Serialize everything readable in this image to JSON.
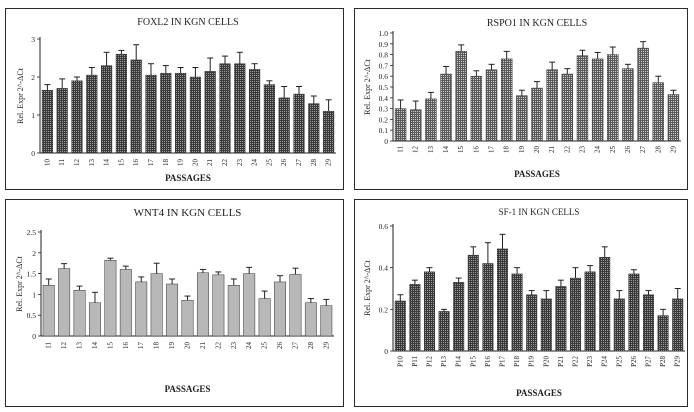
{
  "chart_data": [
    {
      "type": "bar",
      "title": "FOXL2 IN KGN CELLS",
      "xlabel": "PASSAGES",
      "ylabel": "Rel. Expr 2^-ΔCt",
      "ylim": [
        0,
        3
      ],
      "yticks": [
        "0",
        "1",
        "2",
        "3"
      ],
      "grid": false,
      "bar_fill": "crosshatch-dark",
      "categories": [
        "10",
        "11",
        "12",
        "13",
        "14",
        "15",
        "16",
        "17",
        "18",
        "19",
        "20",
        "21",
        "22",
        "23",
        "24",
        "25",
        "26",
        "27",
        "28",
        "29"
      ],
      "values": [
        1.65,
        1.7,
        1.9,
        2.05,
        2.3,
        2.6,
        2.45,
        2.05,
        2.1,
        2.1,
        2.0,
        2.15,
        2.35,
        2.35,
        2.2,
        1.8,
        1.45,
        1.55,
        1.3,
        1.1
      ],
      "errors": [
        0.15,
        0.25,
        0.1,
        0.2,
        0.35,
        0.1,
        0.4,
        0.3,
        0.2,
        0.15,
        0.25,
        0.35,
        0.2,
        0.3,
        0.15,
        0.1,
        0.3,
        0.2,
        0.2,
        0.3
      ]
    },
    {
      "type": "bar",
      "title": "RSPO1 IN KGN CELLS",
      "xlabel": "PASSAGES",
      "ylabel": "Rel. Expr 2^-ΔCt",
      "ylim": [
        0,
        1.0
      ],
      "yticks": [
        "0",
        "0.1",
        "0.2",
        "0.3",
        "0.4",
        "0.5",
        "0.6",
        "0.7",
        "0.8",
        "0.9",
        "1.0"
      ],
      "grid": false,
      "bar_fill": "crosshatch-light",
      "categories": [
        "11",
        "12",
        "13",
        "14",
        "15",
        "16",
        "17",
        "18",
        "19",
        "20",
        "21",
        "22",
        "23",
        "24",
        "25",
        "26",
        "27",
        "28",
        "29"
      ],
      "values": [
        0.3,
        0.29,
        0.39,
        0.62,
        0.83,
        0.6,
        0.66,
        0.76,
        0.42,
        0.49,
        0.66,
        0.62,
        0.79,
        0.76,
        0.8,
        0.67,
        0.86,
        0.54,
        0.43
      ],
      "errors": [
        0.08,
        0.08,
        0.06,
        0.07,
        0.06,
        0.05,
        0.05,
        0.07,
        0.05,
        0.06,
        0.07,
        0.05,
        0.05,
        0.06,
        0.07,
        0.04,
        0.06,
        0.06,
        0.04
      ]
    },
    {
      "type": "bar",
      "title": "WNT4 IN KGN CELLS",
      "xlabel": "PASSAGES",
      "ylabel": "Rel. Expr 2^-ΔCt",
      "ylim": [
        0,
        2.5
      ],
      "yticks": [
        "0",
        "0.5",
        "1",
        "1.5",
        "2",
        "2.5"
      ],
      "grid": false,
      "bar_fill": "solid-grey",
      "categories": [
        "11",
        "12",
        "13",
        "14",
        "15",
        "16",
        "17",
        "18",
        "19",
        "20",
        "21",
        "22",
        "23",
        "24",
        "25",
        "26",
        "27",
        "28",
        "29"
      ],
      "values": [
        1.22,
        1.62,
        1.1,
        0.8,
        1.82,
        1.6,
        1.3,
        1.5,
        1.25,
        0.86,
        1.52,
        1.47,
        1.22,
        1.5,
        0.9,
        1.3,
        1.48,
        0.8,
        0.73
      ],
      "errors": [
        0.15,
        0.12,
        0.1,
        0.25,
        0.05,
        0.08,
        0.12,
        0.25,
        0.12,
        0.1,
        0.08,
        0.07,
        0.15,
        0.15,
        0.18,
        0.15,
        0.15,
        0.1,
        0.15
      ]
    },
    {
      "type": "bar",
      "title": "SF-1 IN KGN CELLS",
      "xlabel": "PASSAGES",
      "ylabel": "Rel. Expr 2^-ΔCt",
      "ylim": [
        0,
        0.6
      ],
      "yticks": [
        "0",
        "0.2",
        "0.4",
        "0.6"
      ],
      "grid": false,
      "bar_fill": "crosshatch-dark",
      "categories": [
        "P10",
        "P11",
        "P12",
        "P13",
        "P14",
        "P15",
        "P16",
        "P17",
        "P18",
        "P19",
        "P20",
        "P21",
        "P22",
        "P23",
        "P24",
        "P25",
        "P26",
        "P27",
        "P28",
        "P29"
      ],
      "values": [
        0.24,
        0.32,
        0.38,
        0.19,
        0.33,
        0.46,
        0.42,
        0.49,
        0.37,
        0.27,
        0.25,
        0.31,
        0.35,
        0.38,
        0.45,
        0.25,
        0.37,
        0.27,
        0.17,
        0.25
      ],
      "errors": [
        0.03,
        0.02,
        0.02,
        0.01,
        0.02,
        0.04,
        0.1,
        0.07,
        0.03,
        0.02,
        0.04,
        0.03,
        0.05,
        0.03,
        0.05,
        0.04,
        0.02,
        0.02,
        0.03,
        0.05
      ]
    }
  ]
}
